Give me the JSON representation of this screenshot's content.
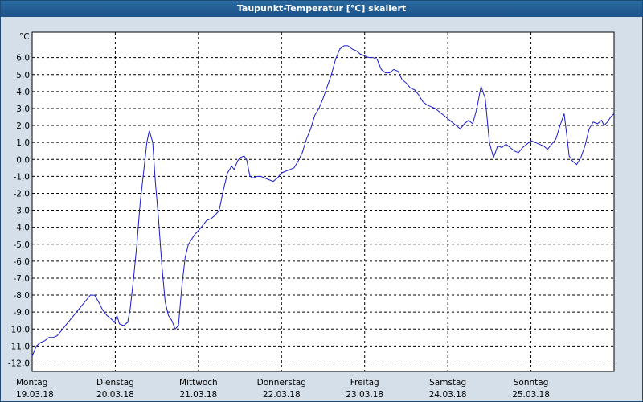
{
  "window": {
    "title": "Taupunkt-Temperatur [°C] skaliert"
  },
  "chart_data": {
    "type": "line",
    "title": "Taupunkt-Temperatur [°C] skaliert",
    "ylabel": "°C",
    "ylim": [
      -12.5,
      7.5
    ],
    "yticks": [
      "6,0",
      "5,0",
      "4,0",
      "3,0",
      "2,0",
      "1,0",
      "0,0",
      "-1,0",
      "-2,0",
      "-3,0",
      "-4,0",
      "-5,0",
      "-6,0",
      "-7,0",
      "-8,0",
      "-9,0",
      "-10,0",
      "-11,0",
      "-12,0"
    ],
    "ytick_values": [
      6,
      5,
      4,
      3,
      2,
      1,
      0,
      -1,
      -2,
      -3,
      -4,
      -5,
      -6,
      -7,
      -8,
      -9,
      -10,
      -11,
      -12
    ],
    "xlim": [
      0,
      7
    ],
    "day_labels": [
      {
        "day": "Montag",
        "date": "19.03.18"
      },
      {
        "day": "Dienstag",
        "date": "20.03.18"
      },
      {
        "day": "Mittwoch",
        "date": "21.03.18"
      },
      {
        "day": "Donnerstag",
        "date": "22.03.18"
      },
      {
        "day": "Freitag",
        "date": "23.03.18"
      },
      {
        "day": "Samstag",
        "date": "24.03.18"
      },
      {
        "day": "Sonntag",
        "date": "25.03.18"
      }
    ],
    "grid": true,
    "line_color": "#1a1acc",
    "series": [
      {
        "points": [
          [
            0.0,
            -11.6
          ],
          [
            0.05,
            -11.0
          ],
          [
            0.1,
            -10.8
          ],
          [
            0.15,
            -10.7
          ],
          [
            0.2,
            -10.5
          ],
          [
            0.25,
            -10.5
          ],
          [
            0.3,
            -10.4
          ],
          [
            0.35,
            -10.1
          ],
          [
            0.4,
            -9.8
          ],
          [
            0.45,
            -9.5
          ],
          [
            0.5,
            -9.2
          ],
          [
            0.55,
            -8.9
          ],
          [
            0.6,
            -8.6
          ],
          [
            0.65,
            -8.3
          ],
          [
            0.7,
            -8.0
          ],
          [
            0.75,
            -8.0
          ],
          [
            0.8,
            -8.4
          ],
          [
            0.85,
            -8.9
          ],
          [
            0.9,
            -9.2
          ],
          [
            0.95,
            -9.4
          ],
          [
            0.99,
            -9.6
          ],
          [
            1.02,
            -9.2
          ],
          [
            1.05,
            -9.7
          ],
          [
            1.1,
            -9.8
          ],
          [
            1.15,
            -9.6
          ],
          [
            1.18,
            -8.8
          ],
          [
            1.22,
            -7.0
          ],
          [
            1.26,
            -5.0
          ],
          [
            1.3,
            -2.5
          ],
          [
            1.34,
            -0.8
          ],
          [
            1.38,
            1.0
          ],
          [
            1.41,
            1.7
          ],
          [
            1.45,
            1.0
          ],
          [
            1.48,
            -1.2
          ],
          [
            1.52,
            -3.5
          ],
          [
            1.56,
            -6.2
          ],
          [
            1.6,
            -8.4
          ],
          [
            1.64,
            -9.2
          ],
          [
            1.68,
            -9.5
          ],
          [
            1.72,
            -10.0
          ],
          [
            1.76,
            -9.8
          ],
          [
            1.8,
            -7.5
          ],
          [
            1.84,
            -5.8
          ],
          [
            1.88,
            -5.0
          ],
          [
            1.92,
            -4.7
          ],
          [
            1.96,
            -4.4
          ],
          [
            2.0,
            -4.2
          ],
          [
            2.05,
            -3.9
          ],
          [
            2.1,
            -3.6
          ],
          [
            2.15,
            -3.5
          ],
          [
            2.2,
            -3.3
          ],
          [
            2.25,
            -3.0
          ],
          [
            2.3,
            -1.8
          ],
          [
            2.35,
            -0.8
          ],
          [
            2.4,
            -0.4
          ],
          [
            2.43,
            -0.6
          ],
          [
            2.47,
            -0.1
          ],
          [
            2.5,
            0.1
          ],
          [
            2.55,
            0.2
          ],
          [
            2.58,
            0.0
          ],
          [
            2.62,
            -1.0
          ],
          [
            2.66,
            -1.1
          ],
          [
            2.7,
            -1.0
          ],
          [
            2.75,
            -1.0
          ],
          [
            2.8,
            -1.1
          ],
          [
            2.85,
            -1.2
          ],
          [
            2.9,
            -1.3
          ],
          [
            2.95,
            -1.1
          ],
          [
            3.0,
            -0.8
          ],
          [
            3.05,
            -0.7
          ],
          [
            3.1,
            -0.6
          ],
          [
            3.15,
            -0.5
          ],
          [
            3.2,
            -0.1
          ],
          [
            3.25,
            0.4
          ],
          [
            3.3,
            1.2
          ],
          [
            3.35,
            1.8
          ],
          [
            3.4,
            2.6
          ],
          [
            3.45,
            3.0
          ],
          [
            3.5,
            3.6
          ],
          [
            3.55,
            4.3
          ],
          [
            3.6,
            5.0
          ],
          [
            3.65,
            5.9
          ],
          [
            3.7,
            6.5
          ],
          [
            3.75,
            6.7
          ],
          [
            3.8,
            6.7
          ],
          [
            3.85,
            6.5
          ],
          [
            3.9,
            6.4
          ],
          [
            3.95,
            6.2
          ],
          [
            4.0,
            6.1
          ],
          [
            4.05,
            6.0
          ],
          [
            4.1,
            6.0
          ],
          [
            4.15,
            5.9
          ],
          [
            4.2,
            5.3
          ],
          [
            4.25,
            5.1
          ],
          [
            4.3,
            5.1
          ],
          [
            4.35,
            5.3
          ],
          [
            4.4,
            5.2
          ],
          [
            4.45,
            4.7
          ],
          [
            4.5,
            4.5
          ],
          [
            4.55,
            4.2
          ],
          [
            4.6,
            4.1
          ],
          [
            4.65,
            3.8
          ],
          [
            4.7,
            3.4
          ],
          [
            4.75,
            3.2
          ],
          [
            4.8,
            3.1
          ],
          [
            4.85,
            3.0
          ],
          [
            4.9,
            2.8
          ],
          [
            4.95,
            2.6
          ],
          [
            5.0,
            2.4
          ],
          [
            5.05,
            2.2
          ],
          [
            5.1,
            2.0
          ],
          [
            5.15,
            1.8
          ],
          [
            5.2,
            2.1
          ],
          [
            5.25,
            2.3
          ],
          [
            5.3,
            2.1
          ],
          [
            5.35,
            3.0
          ],
          [
            5.4,
            4.3
          ],
          [
            5.45,
            3.6
          ],
          [
            5.5,
            1.0
          ],
          [
            5.55,
            0.1
          ],
          [
            5.6,
            0.8
          ],
          [
            5.65,
            0.7
          ],
          [
            5.7,
            0.9
          ],
          [
            5.75,
            0.7
          ],
          [
            5.8,
            0.5
          ],
          [
            5.85,
            0.4
          ],
          [
            5.9,
            0.7
          ],
          [
            5.95,
            0.9
          ],
          [
            6.0,
            1.1
          ],
          [
            6.05,
            1.0
          ],
          [
            6.1,
            0.9
          ],
          [
            6.15,
            0.8
          ],
          [
            6.2,
            0.6
          ],
          [
            6.25,
            0.9
          ],
          [
            6.3,
            1.2
          ],
          [
            6.35,
            2.0
          ],
          [
            6.4,
            2.7
          ],
          [
            6.43,
            1.5
          ],
          [
            6.46,
            0.2
          ],
          [
            6.5,
            -0.1
          ],
          [
            6.55,
            -0.3
          ],
          [
            6.6,
            0.1
          ],
          [
            6.65,
            0.8
          ],
          [
            6.7,
            1.8
          ],
          [
            6.75,
            2.2
          ],
          [
            6.8,
            2.1
          ],
          [
            6.85,
            2.3
          ],
          [
            6.88,
            2.0
          ],
          [
            6.92,
            2.2
          ],
          [
            6.96,
            2.5
          ],
          [
            7.0,
            2.7
          ]
        ]
      }
    ]
  }
}
